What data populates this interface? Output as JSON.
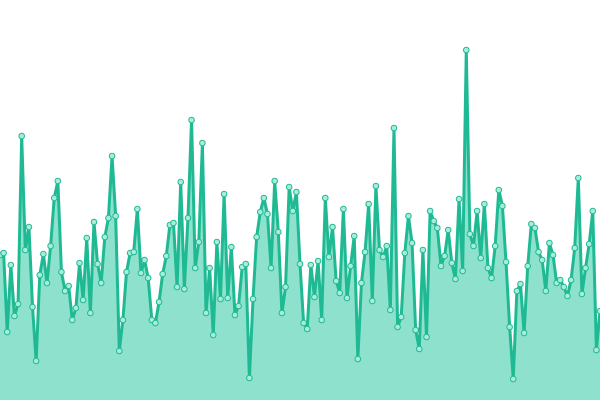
{
  "chart_data": {
    "type": "area",
    "line_color": "#1fba93",
    "fill_color": "#8ee2cd",
    "marker_fill": "#a9ecda",
    "markers": true,
    "ylim": [
      0,
      400
    ],
    "values": [
      145,
      147,
      68,
      135,
      84,
      96,
      264,
      150,
      173,
      93,
      39,
      125,
      146,
      117,
      154,
      202,
      219,
      128,
      109,
      114,
      80,
      92,
      137,
      100,
      162,
      87,
      178,
      136,
      117,
      163,
      182,
      244,
      184,
      49,
      80,
      128,
      147,
      148,
      191,
      127,
      140,
      122,
      80,
      77,
      98,
      126,
      144,
      175,
      177,
      113,
      218,
      111,
      182,
      280,
      132,
      158,
      257,
      87,
      132,
      65,
      158,
      101,
      206,
      102,
      153,
      85,
      94,
      133,
      136,
      22,
      101,
      163,
      188,
      202,
      186,
      132,
      219,
      168,
      87,
      113,
      213,
      189,
      208,
      136,
      77,
      71,
      135,
      103,
      139,
      80,
      202,
      143,
      173,
      119,
      107,
      191,
      102,
      134,
      164,
      41,
      117,
      148,
      196,
      99,
      214,
      150,
      143,
      154,
      90,
      272,
      73,
      83,
      147,
      184,
      157,
      70,
      51,
      150,
      63,
      189,
      179,
      172,
      134,
      144,
      170,
      137,
      121,
      201,
      129,
      350,
      166,
      154,
      189,
      142,
      196,
      132,
      122,
      154,
      210,
      194,
      138,
      73,
      21,
      109,
      116,
      67,
      134,
      176,
      172,
      148,
      140,
      109,
      157,
      145,
      117,
      120,
      113,
      104,
      120,
      152,
      222,
      106,
      132,
      156,
      189,
      50,
      89
    ]
  }
}
